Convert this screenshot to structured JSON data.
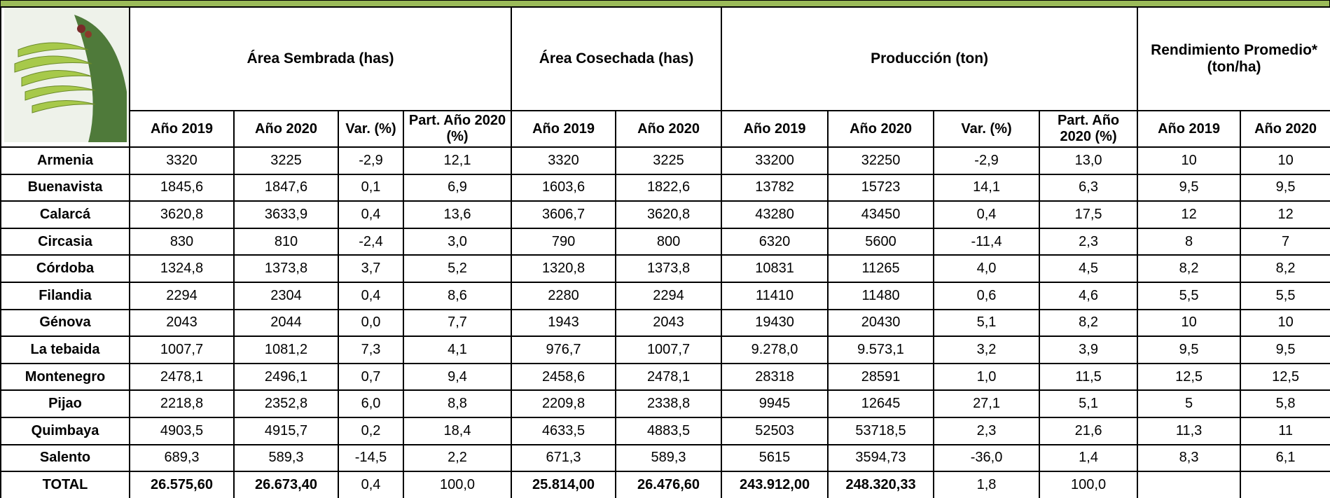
{
  "table": {
    "group_headers": [
      "Área Sembrada (has)",
      "Área Cosechada (has)",
      "Producción (ton)",
      "Rendimiento Promedio* (ton/ha)"
    ],
    "sub_headers": [
      "Año 2019",
      "Año 2020",
      "Var. (%)",
      "Part. Año 2020 (%)",
      "Año 2019",
      "Año 2020",
      "Año 2019",
      "Año 2020",
      "Var. (%)",
      "Part. Año 2020 (%)",
      "Año 2019",
      "Año 2020"
    ],
    "rows": [
      [
        "Armenia",
        "3320",
        "3225",
        "-2,9",
        "12,1",
        "3320",
        "3225",
        "33200",
        "32250",
        "-2,9",
        "13,0",
        "10",
        "10"
      ],
      [
        "Buenavista",
        "1845,6",
        "1847,6",
        "0,1",
        "6,9",
        "1603,6",
        "1822,6",
        "13782",
        "15723",
        "14,1",
        "6,3",
        "9,5",
        "9,5"
      ],
      [
        "Calarcá",
        "3620,8",
        "3633,9",
        "0,4",
        "13,6",
        "3606,7",
        "3620,8",
        "43280",
        "43450",
        "0,4",
        "17,5",
        "12",
        "12"
      ],
      [
        "Circasia",
        "830",
        "810",
        "-2,4",
        "3,0",
        "790",
        "800",
        "6320",
        "5600",
        "-11,4",
        "2,3",
        "8",
        "7"
      ],
      [
        "Córdoba",
        "1324,8",
        "1373,8",
        "3,7",
        "5,2",
        "1320,8",
        "1373,8",
        "10831",
        "11265",
        "4,0",
        "4,5",
        "8,2",
        "8,2"
      ],
      [
        "Filandia",
        "2294",
        "2304",
        "0,4",
        "8,6",
        "2280",
        "2294",
        "11410",
        "11480",
        "0,6",
        "4,6",
        "5,5",
        "5,5"
      ],
      [
        "Génova",
        "2043",
        "2044",
        "0,0",
        "7,7",
        "1943",
        "2043",
        "19430",
        "20430",
        "5,1",
        "8,2",
        "10",
        "10"
      ],
      [
        "La tebaida",
        "1007,7",
        "1081,2",
        "7,3",
        "4,1",
        "976,7",
        "1007,7",
        "9.278,0",
        "9.573,1",
        "3,2",
        "3,9",
        "9,5",
        "9,5"
      ],
      [
        "Montenegro",
        "2478,1",
        "2496,1",
        "0,7",
        "9,4",
        "2458,6",
        "2478,1",
        "28318",
        "28591",
        "1,0",
        "11,5",
        "12,5",
        "12,5"
      ],
      [
        "Pijao",
        "2218,8",
        "2352,8",
        "6,0",
        "8,8",
        "2209,8",
        "2338,8",
        "9945",
        "12645",
        "27,1",
        "5,1",
        "5",
        "5,8"
      ],
      [
        "Quimbaya",
        "4903,5",
        "4915,7",
        "0,2",
        "18,4",
        "4633,5",
        "4883,5",
        "52503",
        "53718,5",
        "2,3",
        "21,6",
        "11,3",
        "11"
      ],
      [
        "Salento",
        "689,3",
        "589,3",
        "-14,5",
        "2,2",
        "671,3",
        "589,3",
        "5615",
        "3594,73",
        "-36,0",
        "1,4",
        "8,3",
        "6,1"
      ],
      [
        "TOTAL",
        "26.575,60",
        "26.673,40",
        "0,4",
        "100,0",
        "25.814,00",
        "26.476,60",
        "243.912,00",
        "248.320,33",
        "1,8",
        "100,0",
        null,
        null
      ]
    ]
  }
}
